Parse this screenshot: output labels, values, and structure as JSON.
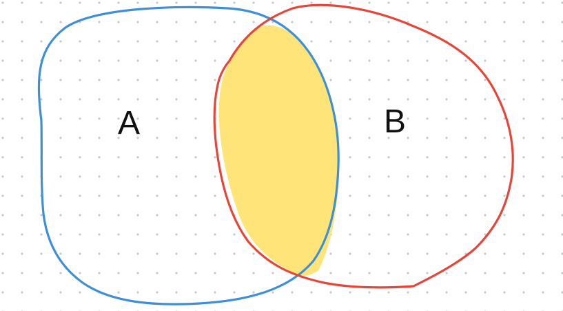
{
  "diagram": {
    "sets": [
      {
        "label": "A",
        "outline_color": "#3d8fd6"
      },
      {
        "label": "B",
        "outline_color": "#e6453a"
      }
    ],
    "intersection": {
      "fill_color": "#ffe47a",
      "highlighted": true
    },
    "background": {
      "pattern": "dot-grid",
      "dot_color": "#c8c8c8"
    }
  }
}
